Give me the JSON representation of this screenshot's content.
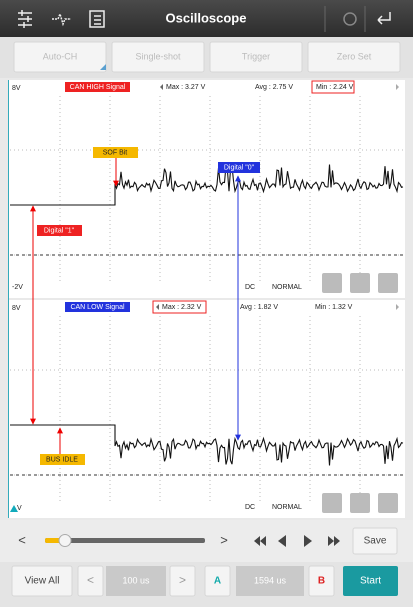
{
  "header": {
    "title": "Oscilloscope"
  },
  "mode_buttons": [
    "Auto-CH",
    "Single-shot",
    "Trigger",
    "Zero Set"
  ],
  "channels": [
    {
      "name": "CAN HIGH Signal",
      "top_label": "8V",
      "bottom_label": "-2V",
      "max": "Max : 3.27 V",
      "avg": "Avg : 2.75 V",
      "min": "Min : 2.24 V",
      "coupling": "DC",
      "mode": "NORMAL"
    },
    {
      "name": "CAN LOW Signal",
      "top_label": "8V",
      "bottom_label": "V",
      "max": "Max : 2.32 V",
      "avg": "Avg : 1.82 V",
      "min": "Min : 1.32 V",
      "coupling": "DC",
      "mode": "NORMAL"
    }
  ],
  "annotations": {
    "sof": "SOF Bit",
    "digital_zero": "Digital \"0\"",
    "digital_one": "Digital \"1\"",
    "bus_idle": "BUS IDLE"
  },
  "playback": {
    "prev": "<",
    "next": ">",
    "save": "Save"
  },
  "footer": {
    "view_all": "View All",
    "prev": "<",
    "time_base": "100 us",
    "next": ">",
    "cursor_a": "A",
    "cursor_delta": "1594 us",
    "cursor_b": "B",
    "start": "Start"
  }
}
